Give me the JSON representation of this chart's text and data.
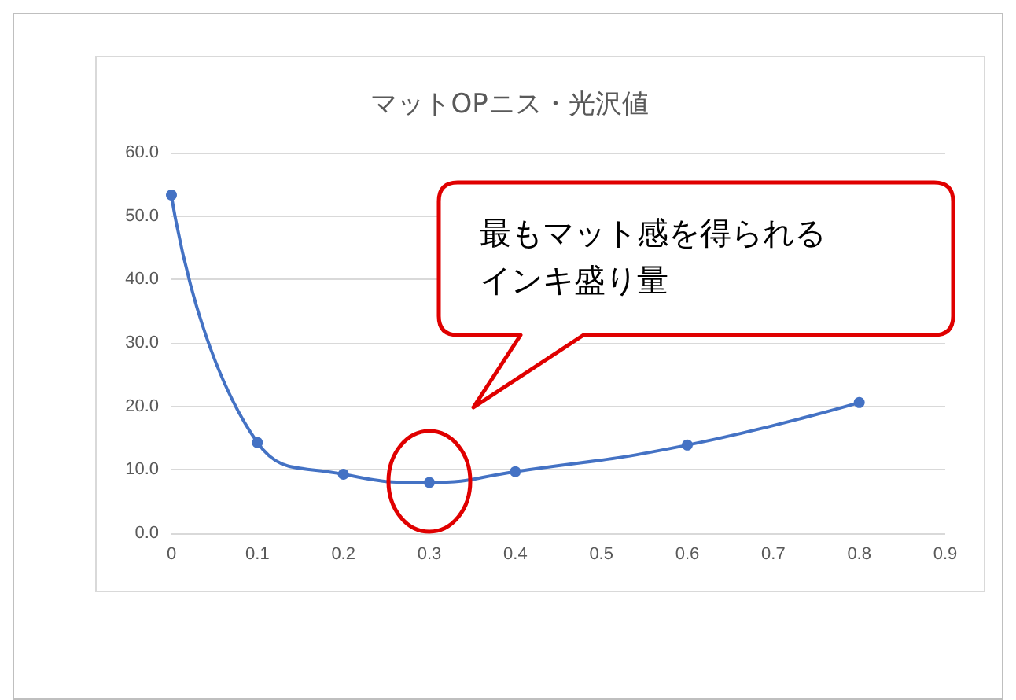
{
  "chart_data": {
    "type": "line",
    "title": "マットOPニス・光沢値",
    "x": [
      0,
      0.1,
      0.2,
      0.3,
      0.4,
      0.6,
      0.8
    ],
    "series": [
      {
        "color": "#4472c4",
        "values": [
          53.3,
          14.3,
          9.3,
          8.0,
          9.7,
          13.9,
          20.6
        ]
      }
    ],
    "xlim": [
      0,
      0.9
    ],
    "xticks": [
      0,
      0.1,
      0.2,
      0.3,
      0.4,
      0.5,
      0.6,
      0.7,
      0.8,
      0.9
    ],
    "ylim": [
      0,
      60
    ],
    "yticks": [
      {
        "value": 0,
        "label": "0.0"
      },
      {
        "value": 10,
        "label": "10.0"
      },
      {
        "value": 20,
        "label": "20.0"
      },
      {
        "value": 30,
        "label": "30.0"
      },
      {
        "value": 40,
        "label": "40.0"
      },
      {
        "value": 50,
        "label": "50.0"
      },
      {
        "value": 60,
        "label": "60.0"
      }
    ],
    "grid": "y",
    "marker": "circle",
    "line_style": "solid",
    "annotations": [
      "最もマット感を得られるインキ盛り量"
    ]
  }
}
